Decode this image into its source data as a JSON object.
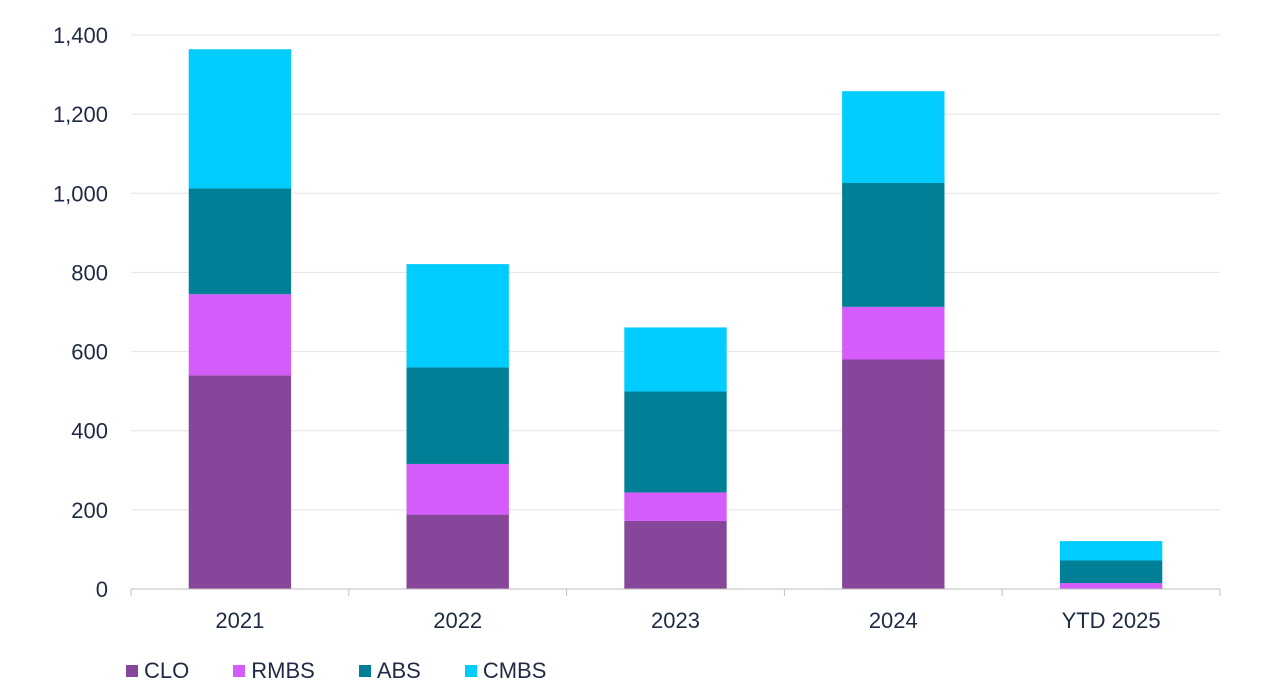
{
  "chart_data": {
    "type": "bar",
    "stacked": true,
    "title": "",
    "xlabel": "",
    "ylabel": "",
    "categories": [
      "2021",
      "2022",
      "2023",
      "2024",
      "YTD 2025"
    ],
    "ylim": [
      0,
      1400
    ],
    "yticks": [
      0,
      200,
      400,
      600,
      800,
      1000,
      1200,
      1400
    ],
    "ytick_labels": [
      "0",
      "200",
      "400",
      "600",
      "800",
      "1,000",
      "1,200",
      "1,400"
    ],
    "grid": true,
    "legend_position": "bottom-left",
    "series": [
      {
        "name": "CLO",
        "color": "#86479a",
        "values": [
          540,
          188,
          172,
          580,
          0
        ]
      },
      {
        "name": "RMBS",
        "color": "#d45cfa",
        "values": [
          205,
          128,
          72,
          133,
          15
        ]
      },
      {
        "name": "ABS",
        "color": "#007f96",
        "values": [
          267,
          244,
          255,
          313,
          57
        ]
      },
      {
        "name": "CMBS",
        "color": "#00ccfd",
        "values": [
          352,
          261,
          162,
          232,
          49
        ]
      }
    ]
  }
}
